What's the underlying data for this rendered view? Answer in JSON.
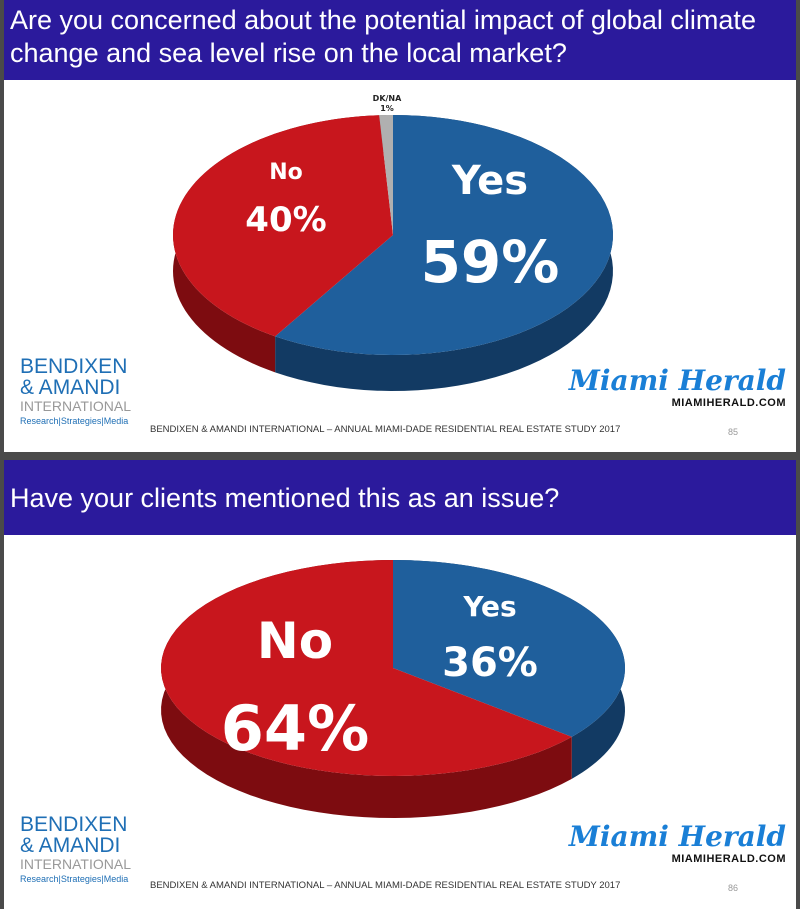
{
  "slides": [
    {
      "title": "Are you concerned about the potential impact of global climate change and sea level rise on the local market?",
      "page": "85"
    },
    {
      "title": "Have your clients mentioned this as an issue?",
      "page": "86"
    }
  ],
  "logo": {
    "line1": "BENDIXEN",
    "line2": "& AMANDI",
    "line3": "INTERNATIONAL",
    "tagline": "Research|Strategies|Media"
  },
  "herald": {
    "name": "Miami Herald",
    "url": "MIAMIHERALD.COM"
  },
  "footer": "BENDIXEN & AMANDI INTERNATIONAL – ANNUAL MIAMI-DADE RESIDENTIAL REAL ESTATE STUDY 2017",
  "colors": {
    "yes": "#1f5f9c",
    "no": "#c8161d",
    "dkna": "#b0b0b0",
    "header": "#2b1a9c"
  },
  "chart_data": [
    {
      "type": "pie",
      "title": "Are you concerned about the potential impact of global climate change and sea level rise on the local market?",
      "categories": [
        "Yes",
        "No",
        "DK/NA"
      ],
      "values": [
        59,
        40,
        1
      ],
      "labels": [
        {
          "name": "Yes",
          "value": "59%"
        },
        {
          "name": "No",
          "value": "40%"
        },
        {
          "name": "DK/NA",
          "value": "1%"
        }
      ]
    },
    {
      "type": "pie",
      "title": "Have your clients mentioned this as an issue?",
      "categories": [
        "Yes",
        "No"
      ],
      "values": [
        36,
        64
      ],
      "labels": [
        {
          "name": "Yes",
          "value": "36%"
        },
        {
          "name": "No",
          "value": "64%"
        }
      ]
    }
  ]
}
